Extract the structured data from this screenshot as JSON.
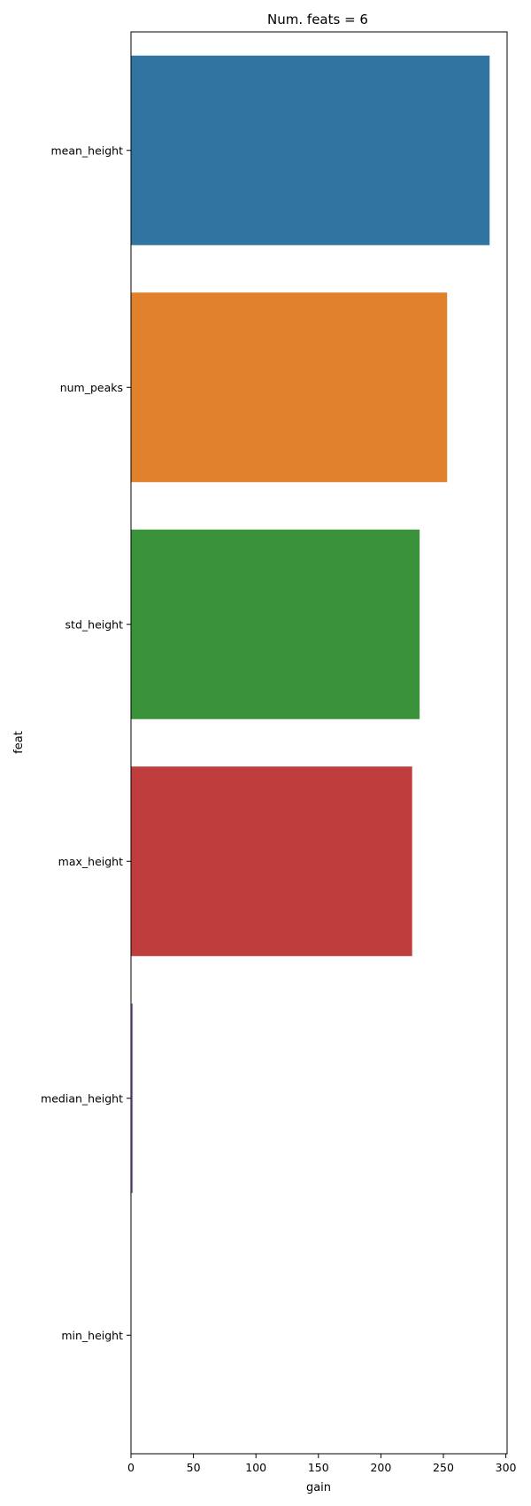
{
  "chart_data": {
    "type": "bar",
    "orientation": "horizontal",
    "title": "Num. feats = 6",
    "xlabel": "gain",
    "ylabel": "feat",
    "categories": [
      "mean_height",
      "num_peaks",
      "std_height",
      "max_height",
      "median_height",
      "min_height"
    ],
    "values": [
      287,
      253,
      231,
      225,
      1.5,
      0
    ],
    "colors": [
      "#3274a1",
      "#e1812c",
      "#3a923a",
      "#c03d3e",
      "#9372b2",
      "#845b53"
    ],
    "xlim": [
      0,
      301
    ],
    "xticks": [
      0,
      50,
      100,
      150,
      200,
      250,
      300
    ],
    "grid": false,
    "legend": "none"
  }
}
